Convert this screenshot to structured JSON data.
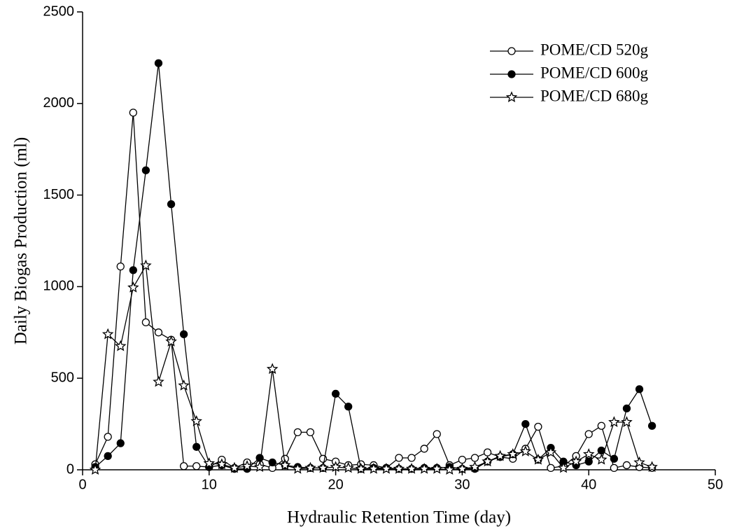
{
  "chart_data": {
    "type": "line",
    "xlabel": "Hydraulic Retention Time (day)",
    "ylabel": "Daily Biogas Production (ml)",
    "x": [
      1,
      2,
      3,
      4,
      5,
      6,
      7,
      8,
      9,
      10,
      11,
      12,
      13,
      14,
      15,
      16,
      17,
      18,
      19,
      20,
      21,
      22,
      23,
      24,
      25,
      26,
      27,
      28,
      29,
      30,
      31,
      32,
      33,
      34,
      35,
      36,
      37,
      38,
      39,
      40,
      41,
      42,
      43,
      44,
      45
    ],
    "series": [
      {
        "name": "POME/CD 520g",
        "color": "#000000",
        "marker": "open-circle",
        "values": [
          30,
          180,
          1110,
          1950,
          805,
          750,
          710,
          20,
          20,
          15,
          55,
          10,
          40,
          30,
          10,
          60,
          205,
          205,
          60,
          45,
          25,
          30,
          25,
          10,
          65,
          65,
          115,
          195,
          25,
          55,
          65,
          95,
          70,
          60,
          115,
          235,
          10,
          20,
          75,
          195,
          240,
          10,
          25,
          15,
          10
        ]
      },
      {
        "name": "POME/CD 600g",
        "color": "#000000",
        "marker": "filled-circle",
        "values": [
          15,
          75,
          145,
          1090,
          1635,
          2220,
          1450,
          740,
          125,
          15,
          25,
          5,
          5,
          65,
          40,
          25,
          15,
          10,
          10,
          415,
          345,
          5,
          10,
          10,
          5,
          5,
          10,
          10,
          15,
          5,
          5,
          45,
          70,
          85,
          250,
          55,
          120,
          45,
          25,
          45,
          105,
          60,
          335,
          440,
          240
        ]
      },
      {
        "name": "POME/CD 680g",
        "color": "#000000",
        "marker": "star",
        "values": [
          0,
          740,
          675,
          995,
          1115,
          480,
          700,
          460,
          265,
          35,
          30,
          10,
          20,
          15,
          550,
          25,
          5,
          10,
          10,
          15,
          10,
          5,
          5,
          5,
          5,
          5,
          5,
          5,
          0,
          5,
          15,
          45,
          75,
          85,
          100,
          55,
          95,
          10,
          45,
          85,
          55,
          260,
          260,
          40,
          15
        ]
      }
    ],
    "xlim": [
      0,
      50
    ],
    "xticks": [
      0,
      10,
      20,
      30,
      40,
      50
    ],
    "ylim": [
      0,
      2500
    ],
    "yticks": [
      0,
      500,
      1000,
      1500,
      2000,
      2500
    ],
    "legend": "upper right"
  }
}
